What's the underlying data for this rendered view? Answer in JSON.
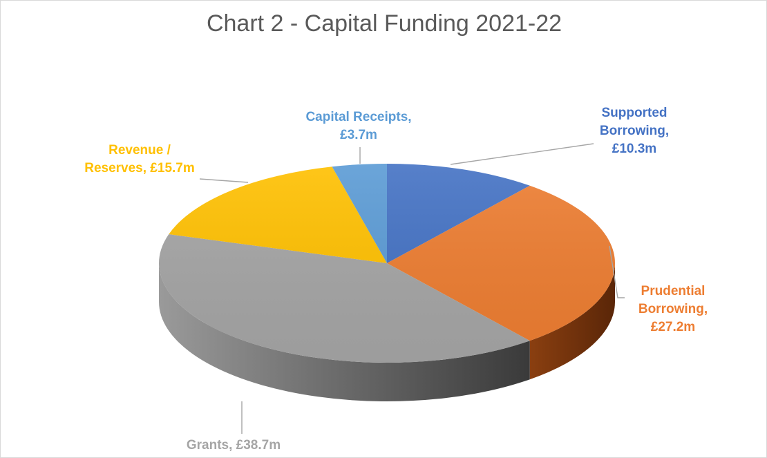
{
  "chart_data": {
    "type": "pie",
    "title": "Chart 2 - Capital Funding 2021-22",
    "currency_unit": "£m",
    "slices": [
      {
        "name": "Supported Borrowing",
        "value": 10.3,
        "label_lines": [
          "Supported",
          "Borrowing,",
          "£10.3m"
        ],
        "color": "#4472c4"
      },
      {
        "name": "Prudential Borrowing",
        "value": 27.2,
        "label_lines": [
          "Prudential",
          "Borrowing,",
          "£27.2m"
        ],
        "color": "#ed7d31"
      },
      {
        "name": "Grants",
        "value": 38.7,
        "label_lines": [
          "Grants,  £38.7m"
        ],
        "color": "#a5a5a5"
      },
      {
        "name": "Revenue / Reserves",
        "value": 15.7,
        "label_lines": [
          "Revenue /",
          "Reserves,  £15.7m"
        ],
        "color": "#ffc000"
      },
      {
        "name": "Capital Receipts",
        "value": 3.7,
        "label_lines": [
          "Capital Receipts,",
          "£3.7m"
        ],
        "color": "#5b9bd5"
      }
    ],
    "style": "3d-pie",
    "legend": "none"
  }
}
